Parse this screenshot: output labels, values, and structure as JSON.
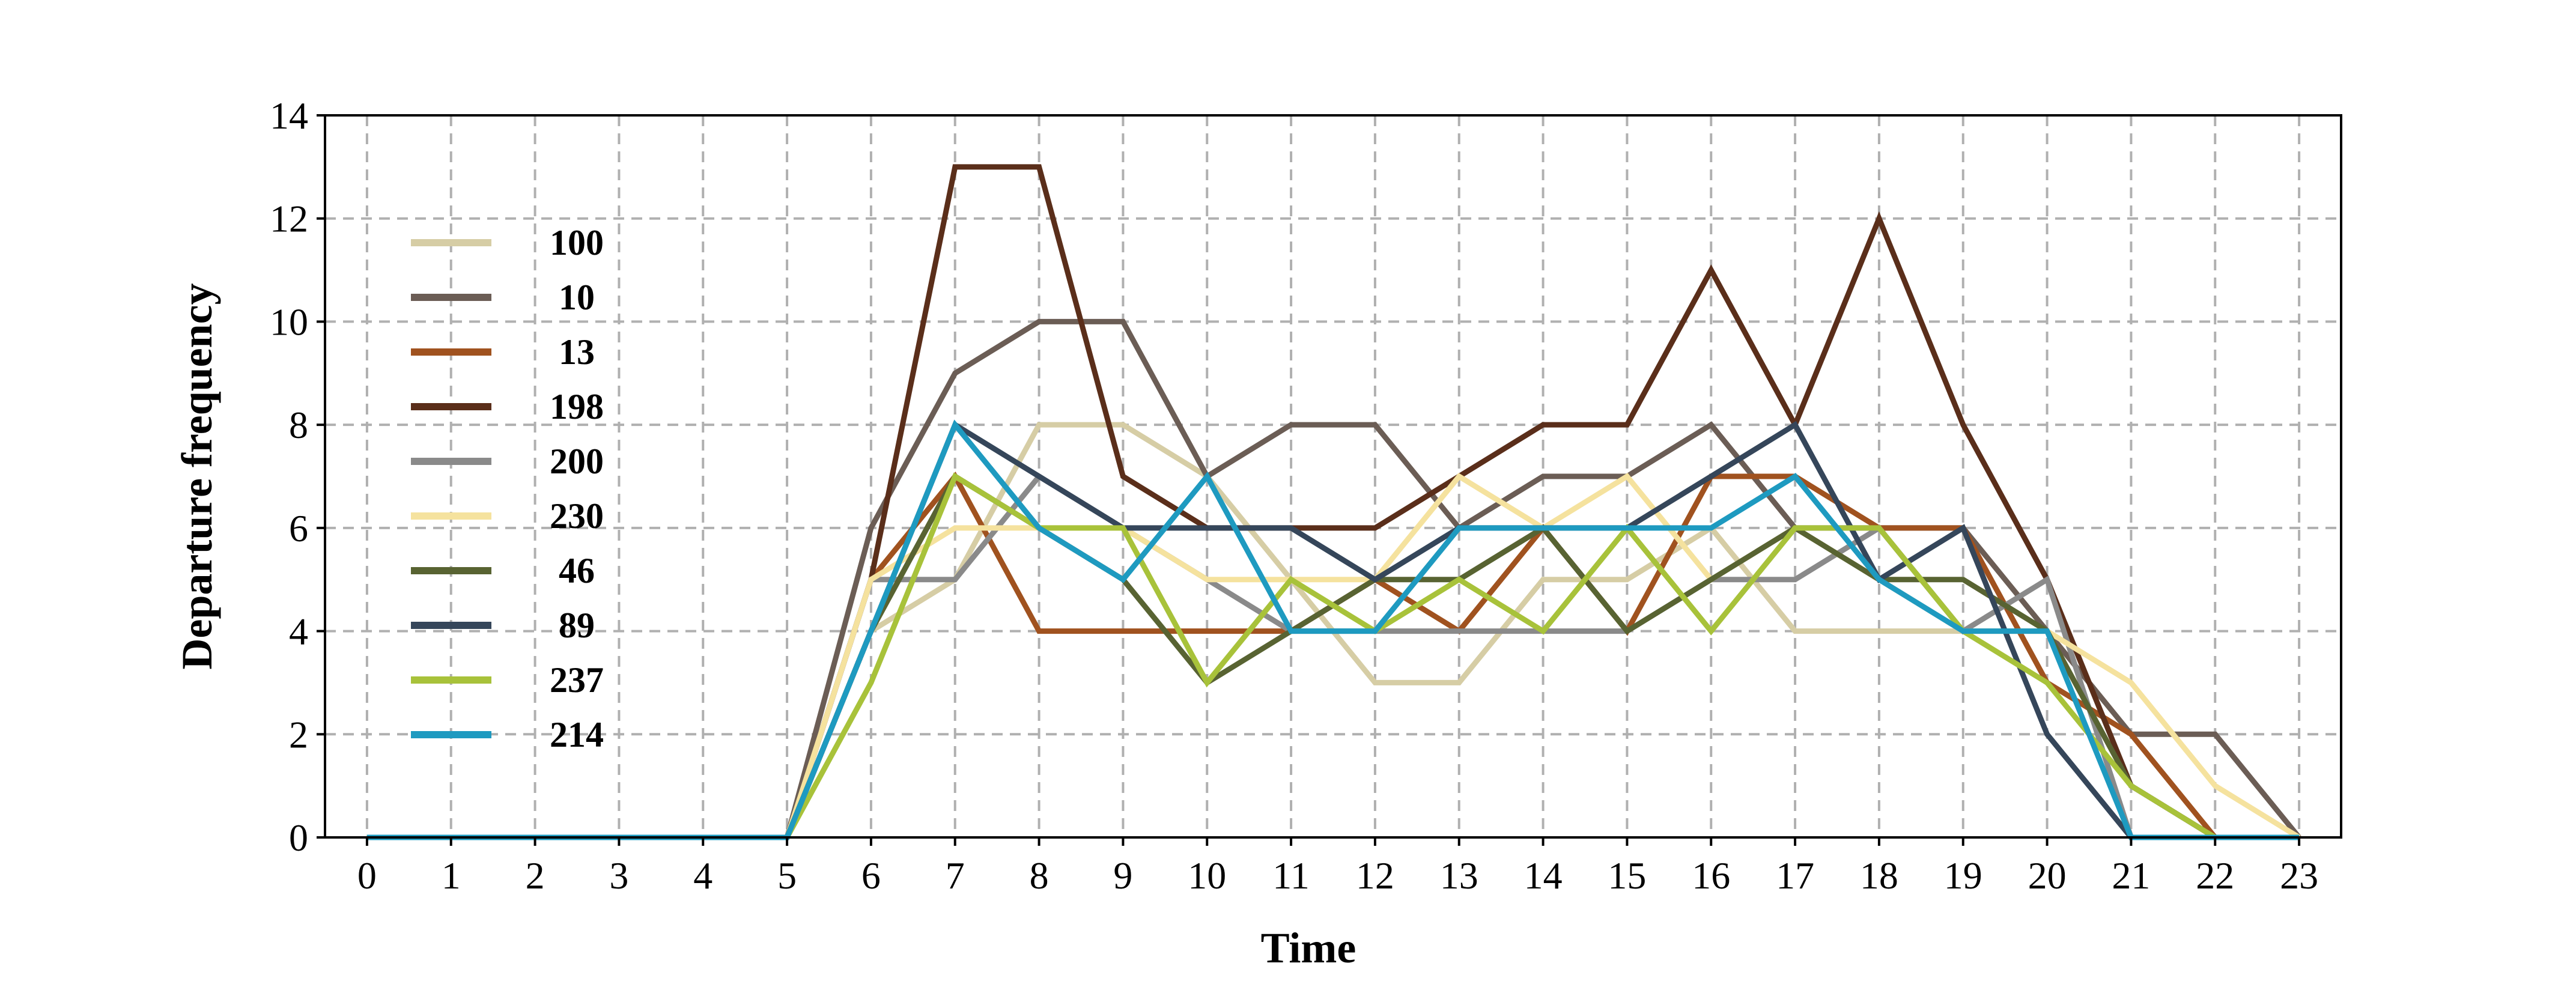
{
  "chart_data": {
    "type": "line",
    "title": "",
    "xlabel": "Time",
    "ylabel": "Departure frequency",
    "x": [
      0,
      1,
      2,
      3,
      4,
      5,
      6,
      7,
      8,
      9,
      10,
      11,
      12,
      13,
      14,
      15,
      16,
      17,
      18,
      19,
      20,
      21,
      22,
      23
    ],
    "xlim": [
      -0.5,
      23.5
    ],
    "ylim": [
      0,
      14
    ],
    "yticks": [
      0,
      2,
      4,
      6,
      8,
      10,
      12,
      14
    ],
    "xtick_labels": [
      "0",
      "1",
      "2",
      "3",
      "4",
      "5",
      "6",
      "7",
      "8",
      "9",
      "10",
      "11",
      "12",
      "13",
      "14",
      "15",
      "16",
      "17",
      "18",
      "19",
      "20",
      "21",
      "22",
      "23"
    ],
    "ytick_labels": [
      "0",
      "2",
      "4",
      "6",
      "8",
      "10",
      "12",
      "14"
    ],
    "grid": true,
    "legend_position": "upper-left",
    "series": [
      {
        "name": "100",
        "color": "#d6cda5",
        "values": [
          0,
          0,
          0,
          0,
          0,
          0,
          4,
          5,
          8,
          8,
          7,
          5,
          3,
          3,
          5,
          5,
          6,
          4,
          4,
          4,
          4,
          1,
          0,
          0
        ]
      },
      {
        "name": "10",
        "color": "#6b5d55",
        "values": [
          0,
          0,
          0,
          0,
          0,
          0,
          6,
          9,
          10,
          10,
          7,
          8,
          8,
          6,
          7,
          7,
          8,
          6,
          6,
          6,
          4,
          2,
          2,
          0
        ]
      },
      {
        "name": "13",
        "color": "#a0521f",
        "values": [
          0,
          0,
          0,
          0,
          0,
          0,
          5,
          7,
          4,
          4,
          4,
          4,
          5,
          4,
          6,
          4,
          7,
          7,
          6,
          6,
          3,
          2,
          0,
          0
        ]
      },
      {
        "name": "198",
        "color": "#5a2e1a",
        "values": [
          0,
          0,
          0,
          0,
          0,
          0,
          5,
          13,
          13,
          7,
          6,
          6,
          6,
          7,
          8,
          8,
          11,
          8,
          12,
          8,
          5,
          1,
          0,
          0
        ]
      },
      {
        "name": "200",
        "color": "#8a8a8a",
        "values": [
          0,
          0,
          0,
          0,
          0,
          0,
          5,
          5,
          7,
          6,
          5,
          4,
          4,
          4,
          4,
          4,
          5,
          5,
          6,
          4,
          5,
          0,
          0,
          0
        ]
      },
      {
        "name": "230",
        "color": "#f5e29e",
        "values": [
          0,
          0,
          0,
          0,
          0,
          0,
          5,
          6,
          6,
          6,
          5,
          5,
          5,
          7,
          6,
          7,
          5,
          6,
          5,
          4,
          4,
          3,
          1,
          0
        ]
      },
      {
        "name": "46",
        "color": "#586332",
        "values": [
          0,
          0,
          0,
          0,
          0,
          0,
          4,
          7,
          6,
          5,
          3,
          4,
          5,
          5,
          6,
          4,
          5,
          6,
          5,
          5,
          4,
          1,
          0,
          0
        ]
      },
      {
        "name": "89",
        "color": "#35465a",
        "values": [
          0,
          0,
          0,
          0,
          0,
          0,
          4,
          8,
          7,
          6,
          6,
          6,
          5,
          6,
          6,
          6,
          7,
          8,
          5,
          6,
          2,
          0,
          0,
          0
        ]
      },
      {
        "name": "237",
        "color": "#a8c23a",
        "values": [
          0,
          0,
          0,
          0,
          0,
          0,
          3,
          7,
          6,
          6,
          3,
          5,
          4,
          5,
          4,
          6,
          4,
          6,
          6,
          4,
          3,
          1,
          0,
          0
        ]
      },
      {
        "name": "214",
        "color": "#1e9ac0",
        "values": [
          0,
          0,
          0,
          0,
          0,
          0,
          4,
          8,
          6,
          5,
          7,
          4,
          4,
          6,
          6,
          6,
          6,
          7,
          5,
          4,
          4,
          0,
          0,
          0
        ]
      }
    ]
  }
}
